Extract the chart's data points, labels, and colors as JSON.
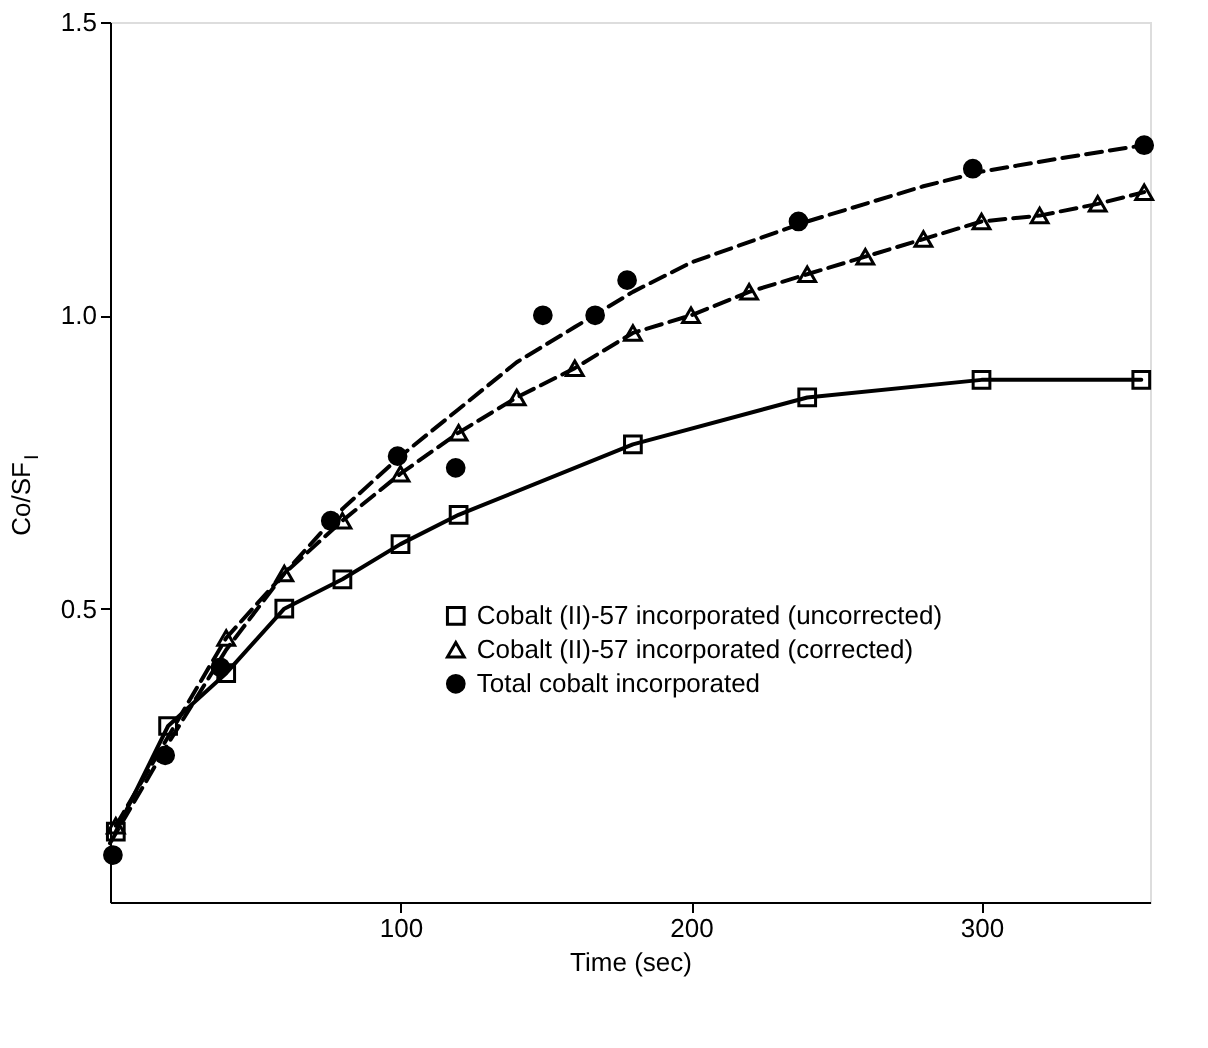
{
  "chart_data": {
    "type": "line",
    "xlabel": "Time (sec)",
    "ylabel": "Co/SF$_{I}$",
    "xlim": [
      0,
      358
    ],
    "ylim": [
      0,
      1.5
    ],
    "xticks": [
      100,
      200,
      300
    ],
    "yticks": [
      0.5,
      {
        "value": 1.0,
        "label": "1.0"
      },
      1.5
    ],
    "legend": "bottom",
    "series": [
      {
        "name": "Cobalt (II)-57 incorporated (uncorrected)",
        "marker": "square",
        "line_style": "solid",
        "color": "#000000",
        "x": [
          2,
          20,
          40,
          60,
          80,
          100,
          120,
          180,
          240,
          300,
          355
        ],
        "values": [
          0.12,
          0.3,
          0.39,
          0.5,
          0.55,
          0.61,
          0.66,
          0.78,
          0.86,
          0.89,
          0.89
        ]
      },
      {
        "name": "Cobalt (II)-57 incorporated (corrected)",
        "marker": "triangle",
        "line_style": "dashed",
        "color": "#000000",
        "x": [
          2,
          40,
          60,
          80,
          100,
          120,
          140,
          160,
          180,
          200,
          220,
          240,
          260,
          280,
          300,
          320,
          340,
          356
        ],
        "values": [
          0.13,
          0.45,
          0.56,
          0.65,
          0.73,
          0.8,
          0.86,
          0.91,
          0.97,
          1.0,
          1.04,
          1.07,
          1.1,
          1.13,
          1.16,
          1.17,
          1.19,
          1.21
        ]
      },
      {
        "name": "Total cobalt incorporated",
        "type": "scatter",
        "marker": "circle",
        "color": "#000000",
        "x": [
          1,
          19,
          38,
          76,
          99,
          119,
          149,
          167,
          178,
          237,
          297,
          356
        ],
        "values": [
          0.08,
          0.25,
          0.4,
          0.65,
          0.76,
          0.74,
          1.0,
          1.0,
          1.06,
          1.16,
          1.25,
          1.29
        ]
      },
      {
        "marker": "none",
        "line_style": "dashed",
        "color": "#000000",
        "x": [
          0,
          20,
          40,
          60,
          80,
          100,
          120,
          140,
          160,
          180,
          200,
          240,
          280,
          300,
          330,
          356
        ],
        "values": [
          0.1,
          0.27,
          0.43,
          0.56,
          0.67,
          0.76,
          0.84,
          0.92,
          0.98,
          1.04,
          1.09,
          1.16,
          1.22,
          1.245,
          1.27,
          1.29
        ]
      }
    ]
  }
}
